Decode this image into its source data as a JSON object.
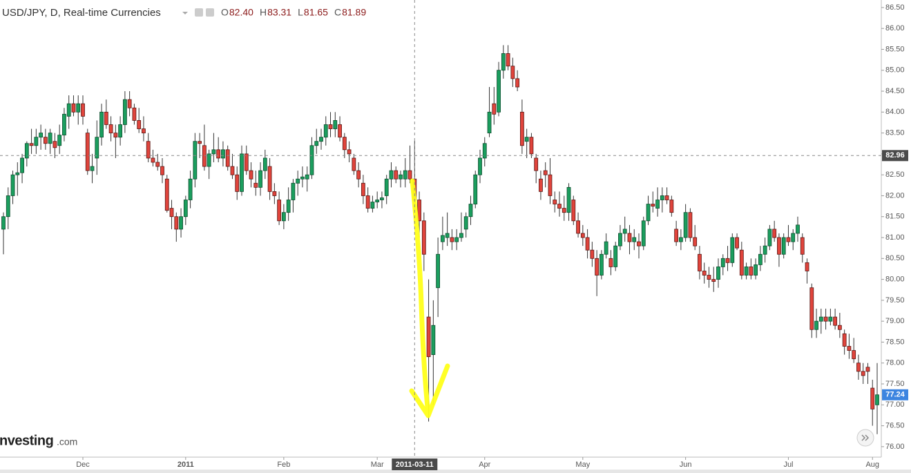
{
  "chart_data": {
    "type": "candlestick",
    "title": "USD/JPY, D, Real-time Currencies",
    "ohlc_labels": [
      {
        "key": "O",
        "value": "82.40"
      },
      {
        "key": "H",
        "value": "83.31"
      },
      {
        "key": "L",
        "value": "81.65"
      },
      {
        "key": "C",
        "value": "81.89"
      }
    ],
    "up_color": "#1b9e5e",
    "down_color": "#e0443c",
    "ylim": [
      75.75,
      86.68
    ],
    "yticks": [
      {
        "value": 76,
        "label": "76.00"
      },
      {
        "value": 76.5,
        "label": "76.50"
      },
      {
        "value": 77,
        "label": "77.00"
      },
      {
        "value": 77.5,
        "label": "77.50"
      },
      {
        "value": 78,
        "label": "78.00"
      },
      {
        "value": 78.5,
        "label": "78.50"
      },
      {
        "value": 79,
        "label": "79.00"
      },
      {
        "value": 79.5,
        "label": "79.50"
      },
      {
        "value": 80,
        "label": "80.00"
      },
      {
        "value": 80.5,
        "label": "80.50"
      },
      {
        "value": 81,
        "label": "81.00"
      },
      {
        "value": 81.5,
        "label": "81.50"
      },
      {
        "value": 82,
        "label": "82.00"
      },
      {
        "value": 82.5,
        "label": "82.50"
      },
      {
        "value": 83,
        "label": "83.00"
      },
      {
        "value": 83.5,
        "label": "83.50"
      },
      {
        "value": 84,
        "label": "84.00"
      },
      {
        "value": 84.5,
        "label": "84.50"
      },
      {
        "value": 85,
        "label": "85.00"
      },
      {
        "value": 85.5,
        "label": "85.50"
      },
      {
        "value": 86,
        "label": "86.00"
      },
      {
        "value": 86.5,
        "label": "86.50"
      }
    ],
    "crosshair": {
      "x_label": "2011-03-11",
      "price": 82.96
    },
    "last_price": 77.24,
    "brand": "Investing",
    "brand_suffix": ".com",
    "categories": [
      null,
      null,
      null,
      null,
      null,
      null,
      null,
      null,
      null,
      null,
      null,
      null,
      null,
      null,
      null,
      null,
      null,
      "Dec",
      null,
      null,
      null,
      null,
      null,
      null,
      null,
      null,
      null,
      null,
      null,
      null,
      null,
      null,
      null,
      null,
      null,
      null,
      null,
      null,
      null,
      "2011",
      null,
      null,
      null,
      null,
      null,
      null,
      null,
      null,
      null,
      null,
      null,
      null,
      null,
      null,
      null,
      null,
      null,
      null,
      null,
      null,
      "Feb",
      null,
      null,
      null,
      null,
      null,
      null,
      null,
      null,
      null,
      null,
      null,
      null,
      null,
      null,
      null,
      null,
      null,
      null,
      null,
      "Mar",
      null,
      null,
      null,
      null,
      null,
      null,
      null,
      null,
      null,
      null,
      null,
      null,
      null,
      null,
      null,
      null,
      null,
      null,
      null,
      null,
      null,
      null,
      "Apr",
      null,
      null,
      null,
      null,
      null,
      null,
      null,
      null,
      null,
      null,
      null,
      null,
      null,
      null,
      null,
      null,
      null,
      null,
      null,
      null,
      "May",
      null,
      null,
      null,
      null,
      null,
      null,
      null,
      null,
      null,
      null,
      null,
      null,
      null,
      null,
      null,
      null,
      null,
      null,
      null,
      null,
      null,
      "Jun",
      null,
      null,
      null,
      null,
      null,
      null,
      null,
      null,
      null,
      null,
      null,
      null,
      null,
      null,
      null,
      null,
      null,
      null,
      null,
      null,
      null,
      "Jul",
      null,
      null,
      null,
      null,
      null,
      null,
      null,
      null,
      null,
      null,
      null,
      null,
      null,
      null,
      null,
      null,
      null,
      "Aug"
    ],
    "candles": [
      [
        81.2,
        81.6,
        80.6,
        81.5
      ],
      [
        81.5,
        82.2,
        81.2,
        82.0
      ],
      [
        82.0,
        82.6,
        81.8,
        82.5
      ],
      [
        82.5,
        82.8,
        82.0,
        82.55
      ],
      [
        82.55,
        83.0,
        82.3,
        82.9
      ],
      [
        82.9,
        83.3,
        82.7,
        83.25
      ],
      [
        83.25,
        83.6,
        83.0,
        83.2
      ],
      [
        83.2,
        83.6,
        83.0,
        83.4
      ],
      [
        83.4,
        83.7,
        83.1,
        83.5
      ],
      [
        83.4,
        83.6,
        83.1,
        83.25
      ],
      [
        83.25,
        83.6,
        83.0,
        83.5
      ],
      [
        83.3,
        83.5,
        82.9,
        83.15
      ],
      [
        83.2,
        83.7,
        83.0,
        83.45
      ],
      [
        83.45,
        84.1,
        83.3,
        83.95
      ],
      [
        83.9,
        84.4,
        83.6,
        84.2
      ],
      [
        84.2,
        84.4,
        83.9,
        84.0
      ],
      [
        84.0,
        84.4,
        83.7,
        84.2
      ],
      [
        84.2,
        84.4,
        83.7,
        83.9
      ],
      [
        83.5,
        83.6,
        82.5,
        82.6
      ],
      [
        82.6,
        83.0,
        82.3,
        82.7
      ],
      [
        82.9,
        83.8,
        82.5,
        83.4
      ],
      [
        83.4,
        84.2,
        83.2,
        84.0
      ],
      [
        84.0,
        84.3,
        83.6,
        83.7
      ],
      [
        83.7,
        83.9,
        83.3,
        83.5
      ],
      [
        83.5,
        83.7,
        82.9,
        83.4
      ],
      [
        83.4,
        83.9,
        83.2,
        83.7
      ],
      [
        83.7,
        84.5,
        83.5,
        84.3
      ],
      [
        84.3,
        84.5,
        83.9,
        84.1
      ],
      [
        84.1,
        84.2,
        83.7,
        83.8
      ],
      [
        83.8,
        84.1,
        83.5,
        83.6
      ],
      [
        83.6,
        83.9,
        83.3,
        83.5
      ],
      [
        83.3,
        83.5,
        82.8,
        82.9
      ],
      [
        82.9,
        83.1,
        82.7,
        82.8
      ],
      [
        82.8,
        83.0,
        82.6,
        82.7
      ],
      [
        82.7,
        82.9,
        82.3,
        82.5
      ],
      [
        82.4,
        82.5,
        81.6,
        81.65
      ],
      [
        81.7,
        81.9,
        81.2,
        81.5
      ],
      [
        81.5,
        81.6,
        80.9,
        81.2
      ],
      [
        81.2,
        81.7,
        81.0,
        81.5
      ],
      [
        81.5,
        82.0,
        81.3,
        81.9
      ],
      [
        81.9,
        82.6,
        81.7,
        82.4
      ],
      [
        82.4,
        83.5,
        82.2,
        83.3
      ],
      [
        83.3,
        83.5,
        82.9,
        83.25
      ],
      [
        83.2,
        83.7,
        82.6,
        82.7
      ],
      [
        82.7,
        83.1,
        82.4,
        83.0
      ],
      [
        83.0,
        83.5,
        82.8,
        83.1
      ],
      [
        83.1,
        83.4,
        82.8,
        82.9
      ],
      [
        82.9,
        83.3,
        82.7,
        83.1
      ],
      [
        83.1,
        83.2,
        82.6,
        82.7
      ],
      [
        82.7,
        83.0,
        82.4,
        82.5
      ],
      [
        82.5,
        82.7,
        81.9,
        82.1
      ],
      [
        82.1,
        83.2,
        82.0,
        83.0
      ],
      [
        83.0,
        83.2,
        82.5,
        82.6
      ],
      [
        82.6,
        82.8,
        82.2,
        82.4
      ],
      [
        82.3,
        82.6,
        82.0,
        82.2
      ],
      [
        82.2,
        82.8,
        82.0,
        82.6
      ],
      [
        82.6,
        83.1,
        82.4,
        82.9
      ],
      [
        82.7,
        82.9,
        81.9,
        82.1
      ],
      [
        82.1,
        82.3,
        81.8,
        82.0
      ],
      [
        81.9,
        82.1,
        81.3,
        81.4
      ],
      [
        81.4,
        81.8,
        81.2,
        81.6
      ],
      [
        81.6,
        82.2,
        81.4,
        81.9
      ],
      [
        81.9,
        82.4,
        81.6,
        82.3
      ],
      [
        82.3,
        82.6,
        82.0,
        82.4
      ],
      [
        82.4,
        82.7,
        82.2,
        82.45
      ],
      [
        82.4,
        82.7,
        82.1,
        82.5
      ],
      [
        82.5,
        83.4,
        82.4,
        83.2
      ],
      [
        83.2,
        83.6,
        83.0,
        83.3
      ],
      [
        83.3,
        83.6,
        83.1,
        83.4
      ],
      [
        83.4,
        83.9,
        83.2,
        83.7
      ],
      [
        83.7,
        84.0,
        83.4,
        83.6
      ],
      [
        83.6,
        84.0,
        83.4,
        83.8
      ],
      [
        83.7,
        83.9,
        83.3,
        83.4
      ],
      [
        83.4,
        83.5,
        82.9,
        83.1
      ],
      [
        83.1,
        83.3,
        82.8,
        83.0
      ],
      [
        82.9,
        83.0,
        82.5,
        82.6
      ],
      [
        82.6,
        82.8,
        82.2,
        82.4
      ],
      [
        82.3,
        82.5,
        81.8,
        82.0
      ],
      [
        82.0,
        82.2,
        81.6,
        81.7
      ],
      [
        81.7,
        82.0,
        81.6,
        81.85
      ],
      [
        81.85,
        82.1,
        81.7,
        81.9
      ],
      [
        81.9,
        82.1,
        81.7,
        81.95
      ],
      [
        82.0,
        82.5,
        81.8,
        82.4
      ],
      [
        82.4,
        82.8,
        82.2,
        82.6
      ],
      [
        82.6,
        82.7,
        82.3,
        82.4
      ],
      [
        82.4,
        82.6,
        82.2,
        82.5
      ],
      [
        82.4,
        82.9,
        82.2,
        82.6
      ],
      [
        82.6,
        83.2,
        82.3,
        82.4
      ],
      [
        82.4,
        83.31,
        81.65,
        81.89
      ],
      [
        81.9,
        82.1,
        81.0,
        81.4
      ],
      [
        81.4,
        81.6,
        80.2,
        80.6
      ],
      [
        79.1,
        80.0,
        76.6,
        78.15
      ],
      [
        78.2,
        79.5,
        77.0,
        78.9
      ],
      [
        79.8,
        81.0,
        79.1,
        80.6
      ],
      [
        80.9,
        81.5,
        80.7,
        81.05
      ],
      [
        81.0,
        81.6,
        80.8,
        81.1
      ],
      [
        81.0,
        81.2,
        80.7,
        80.9
      ],
      [
        80.9,
        81.2,
        80.7,
        81.0
      ],
      [
        81.0,
        81.6,
        80.9,
        81.1
      ],
      [
        81.2,
        81.6,
        81.0,
        81.5
      ],
      [
        81.5,
        82.0,
        81.3,
        81.8
      ],
      [
        81.8,
        82.6,
        81.7,
        82.5
      ],
      [
        82.5,
        83.1,
        82.3,
        82.9
      ],
      [
        82.9,
        83.4,
        82.7,
        83.25
      ],
      [
        83.5,
        84.6,
        83.4,
        84.0
      ],
      [
        84.2,
        84.6,
        83.7,
        83.95
      ],
      [
        84.0,
        85.2,
        83.9,
        85.0
      ],
      [
        85.0,
        85.6,
        84.8,
        85.4
      ],
      [
        85.4,
        85.6,
        85.0,
        85.1
      ],
      [
        85.1,
        85.3,
        84.6,
        84.8
      ],
      [
        84.8,
        85.0,
        84.5,
        84.6
      ],
      [
        84.0,
        84.3,
        83.0,
        83.2
      ],
      [
        83.3,
        83.6,
        82.9,
        83.4
      ],
      [
        83.4,
        83.5,
        82.9,
        83.0
      ],
      [
        82.9,
        83.0,
        82.3,
        82.6
      ],
      [
        82.4,
        82.6,
        81.9,
        82.1
      ],
      [
        82.6,
        82.8,
        82.2,
        82.5
      ],
      [
        82.5,
        82.9,
        81.8,
        82.0
      ],
      [
        81.9,
        82.1,
        81.6,
        81.8
      ],
      [
        81.8,
        82.1,
        81.5,
        81.7
      ],
      [
        81.7,
        82.0,
        81.4,
        81.6
      ],
      [
        81.6,
        82.3,
        81.4,
        82.2
      ],
      [
        81.9,
        82.0,
        81.3,
        81.4
      ],
      [
        81.4,
        81.6,
        81.0,
        81.1
      ],
      [
        81.1,
        81.3,
        80.8,
        81.0
      ],
      [
        81.0,
        81.2,
        80.5,
        80.7
      ],
      [
        80.7,
        80.9,
        80.3,
        80.5
      ],
      [
        80.5,
        80.7,
        79.6,
        80.1
      ],
      [
        80.1,
        80.7,
        80.0,
        80.6
      ],
      [
        80.6,
        81.1,
        80.5,
        80.9
      ],
      [
        80.5,
        80.7,
        80.1,
        80.3
      ],
      [
        80.3,
        80.9,
        80.2,
        80.8
      ],
      [
        80.8,
        81.3,
        80.7,
        81.1
      ],
      [
        81.1,
        81.5,
        80.9,
        81.2
      ],
      [
        81.1,
        81.3,
        80.6,
        80.9
      ],
      [
        80.9,
        81.2,
        80.7,
        81.0
      ],
      [
        80.9,
        81.1,
        80.5,
        80.8
      ],
      [
        80.8,
        81.5,
        80.7,
        81.4
      ],
      [
        81.4,
        82.0,
        81.3,
        81.8
      ],
      [
        81.8,
        82.1,
        81.6,
        81.75
      ],
      [
        81.7,
        82.2,
        81.5,
        81.9
      ],
      [
        81.9,
        82.2,
        81.6,
        82.0
      ],
      [
        82.0,
        82.2,
        81.8,
        81.9
      ],
      [
        81.9,
        82.0,
        81.5,
        81.6
      ],
      [
        81.2,
        81.4,
        80.8,
        80.9
      ],
      [
        80.9,
        81.2,
        80.7,
        81.0
      ],
      [
        81.0,
        81.8,
        80.9,
        81.6
      ],
      [
        81.6,
        81.7,
        80.9,
        81.0
      ],
      [
        81.0,
        81.3,
        80.7,
        80.8
      ],
      [
        80.6,
        80.8,
        80.0,
        80.2
      ],
      [
        80.2,
        80.4,
        79.9,
        80.1
      ],
      [
        80.1,
        80.3,
        79.8,
        80.0
      ],
      [
        80.0,
        80.3,
        79.7,
        79.95
      ],
      [
        80.0,
        80.5,
        79.8,
        80.3
      ],
      [
        80.3,
        80.6,
        80.1,
        80.5
      ],
      [
        80.5,
        80.8,
        80.2,
        80.4
      ],
      [
        80.4,
        81.1,
        80.3,
        81.0
      ],
      [
        81.0,
        81.1,
        80.7,
        80.75
      ],
      [
        80.7,
        80.9,
        80.0,
        80.1
      ],
      [
        80.1,
        80.4,
        80.0,
        80.3
      ],
      [
        80.3,
        80.5,
        80.0,
        80.1
      ],
      [
        80.1,
        80.5,
        80.0,
        80.35
      ],
      [
        80.35,
        80.8,
        80.2,
        80.6
      ],
      [
        80.6,
        81.0,
        80.4,
        80.8
      ],
      [
        80.8,
        81.3,
        80.7,
        81.2
      ],
      [
        81.2,
        81.4,
        80.9,
        81.0
      ],
      [
        81.0,
        81.1,
        80.3,
        80.6
      ],
      [
        80.6,
        81.1,
        80.5,
        81.0
      ],
      [
        81.0,
        81.3,
        80.8,
        80.9
      ],
      [
        80.9,
        81.2,
        80.7,
        81.1
      ],
      [
        81.1,
        81.5,
        80.9,
        81.3
      ],
      [
        81.0,
        81.1,
        80.4,
        80.6
      ],
      [
        80.4,
        80.5,
        79.9,
        80.2
      ],
      [
        79.8,
        79.9,
        78.6,
        78.8
      ],
      [
        78.8,
        79.3,
        78.6,
        79.0
      ],
      [
        79.0,
        79.3,
        78.7,
        79.1
      ],
      [
        79.1,
        79.3,
        78.8,
        79.0
      ],
      [
        79.0,
        79.3,
        78.9,
        79.1
      ],
      [
        79.1,
        79.3,
        78.8,
        78.9
      ],
      [
        78.9,
        79.2,
        78.6,
        78.8
      ],
      [
        78.7,
        78.8,
        78.2,
        78.4
      ],
      [
        78.4,
        78.7,
        78.1,
        78.3
      ],
      [
        78.3,
        78.6,
        78.0,
        78.1
      ],
      [
        78.0,
        78.2,
        77.6,
        77.8
      ],
      [
        77.8,
        78.0,
        77.5,
        77.7
      ],
      [
        77.9,
        78.0,
        77.5,
        77.8
      ],
      [
        77.4,
        77.6,
        76.5,
        76.9
      ],
      [
        77.0,
        78.0,
        76.3,
        77.24
      ]
    ]
  }
}
